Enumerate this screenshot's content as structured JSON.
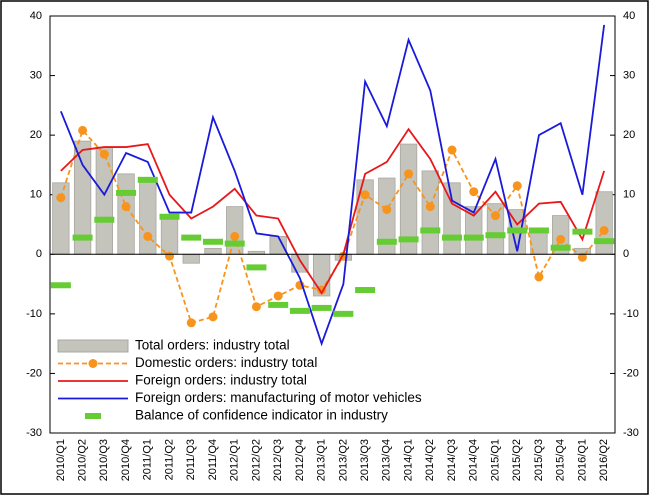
{
  "chart_data": {
    "type": "combo",
    "categories": [
      "2010/Q1",
      "2010/Q2",
      "2010/Q3",
      "2010/Q4",
      "2011/Q1",
      "2011/Q2",
      "2011/Q3",
      "2011/Q4",
      "2012/Q1",
      "2012/Q2",
      "2012/Q3",
      "2012/Q4",
      "2013/Q1",
      "2013/Q2",
      "2013/Q3",
      "2013/Q4",
      "2014/Q1",
      "2014/Q2",
      "2014/Q3",
      "2014/Q4",
      "2015/Q1",
      "2015/Q2",
      "2015/Q3",
      "2015/Q4",
      "2016/Q1",
      "2016/Q2"
    ],
    "series": [
      {
        "name": "Total orders: industry total",
        "type": "bar",
        "color": "#c4c4bc",
        "values": [
          12,
          19,
          18,
          13.5,
          12.5,
          6,
          -1.5,
          1,
          8,
          0.5,
          3,
          -3,
          -7,
          -1,
          12.5,
          12.8,
          18.5,
          14,
          12,
          8,
          8.5,
          7.5,
          4,
          6.5,
          1,
          10.5
        ]
      },
      {
        "name": "Domestic orders: industry total",
        "type": "dashed-marker-line",
        "color": "#f7941d",
        "values": [
          9.5,
          20.8,
          16.8,
          8,
          3,
          -0.3,
          -11.5,
          -10.5,
          3,
          -8.8,
          -7,
          -5.2,
          -6,
          -0.3,
          10,
          7.5,
          13.5,
          8,
          17.5,
          10.5,
          6.5,
          11.5,
          -3.8,
          2.5,
          -0.5,
          4
        ]
      },
      {
        "name": "Foreign orders: industry total",
        "type": "line",
        "color": "#e8181a",
        "values": [
          14,
          17.5,
          18,
          18,
          18.5,
          10,
          6,
          8,
          11,
          6.5,
          6,
          -1,
          -6.5,
          0,
          13.5,
          15.5,
          21,
          16,
          8.5,
          6.5,
          10.5,
          5,
          8.5,
          8.8,
          2.5,
          14
        ]
      },
      {
        "name": "Foreign orders: manufacturing of motor vehicles",
        "type": "line",
        "color": "#1a1adb",
        "values": [
          24,
          15,
          10,
          17,
          15.5,
          7,
          7,
          23,
          14,
          3.5,
          3,
          -4,
          -15,
          -5,
          29,
          21.5,
          36,
          27.5,
          9,
          7,
          16,
          0.5,
          20,
          22,
          10,
          38.5
        ]
      },
      {
        "name": "Balance of confidence indicator in industry",
        "type": "dash",
        "color": "#66cc33",
        "values": [
          -5.2,
          2.8,
          5.8,
          10.3,
          12.5,
          6.3,
          2.8,
          2.1,
          1.8,
          -2.2,
          -8.5,
          -9.5,
          -9,
          -10,
          -6,
          2.1,
          2.5,
          4,
          2.8,
          2.8,
          3.2,
          4,
          4,
          1.1,
          3.8,
          2.2
        ]
      }
    ],
    "ylim": [
      -30,
      40
    ],
    "yticks": [
      -30,
      -20,
      -10,
      0,
      10,
      20,
      30,
      40
    ],
    "y2lim": [
      -30,
      40
    ],
    "y2ticks": [
      -30,
      -20,
      -10,
      0,
      10,
      20,
      30,
      40
    ],
    "legend": "bottom-left"
  }
}
